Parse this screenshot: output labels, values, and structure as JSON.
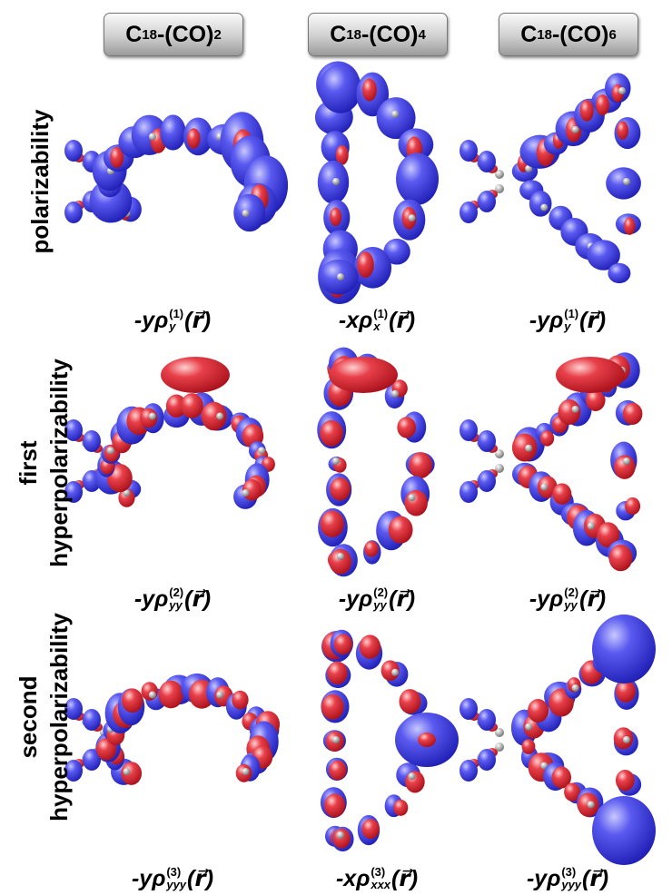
{
  "columns": [
    {
      "formula_base": "C",
      "formula_sub1": "18",
      "formula_mid": "-(CO)",
      "formula_sub2": "2"
    },
    {
      "formula_base": "C",
      "formula_sub1": "18",
      "formula_mid": "-(CO)",
      "formula_sub2": "4"
    },
    {
      "formula_base": "C",
      "formula_sub1": "18",
      "formula_mid": "-(CO)",
      "formula_sub2": "6"
    }
  ],
  "rows": [
    {
      "label_lines": [
        "polarizability"
      ],
      "panels": [
        {
          "sign_var": "-y",
          "symbol": "ρ",
          "superscript": "(1)",
          "subscript": "y",
          "argument": "(r⃗)"
        },
        {
          "sign_var": "-x",
          "symbol": "ρ",
          "superscript": "(1)",
          "subscript": "x",
          "argument": "(r⃗)"
        },
        {
          "sign_var": "-y",
          "symbol": "ρ",
          "superscript": "(1)",
          "subscript": "y",
          "argument": "(r⃗)"
        }
      ]
    },
    {
      "label_lines": [
        "first",
        "hyperpolarizability"
      ],
      "panels": [
        {
          "sign_var": "-y",
          "symbol": "ρ",
          "superscript": "(2)",
          "subscript": "yy",
          "argument": "(r⃗)"
        },
        {
          "sign_var": "-y",
          "symbol": "ρ",
          "superscript": "(2)",
          "subscript": "yy",
          "argument": "(r⃗)"
        },
        {
          "sign_var": "-y",
          "symbol": "ρ",
          "superscript": "(2)",
          "subscript": "yy",
          "argument": "(r⃗)"
        }
      ]
    },
    {
      "label_lines": [
        "second",
        "hyperpolarizability"
      ],
      "panels": [
        {
          "sign_var": "-y",
          "symbol": "ρ",
          "superscript": "(3)",
          "subscript": "yyy",
          "argument": "(r⃗)"
        },
        {
          "sign_var": "-x",
          "symbol": "ρ",
          "superscript": "(3)",
          "subscript": "xxx",
          "argument": "(r⃗)"
        },
        {
          "sign_var": "-y",
          "symbol": "ρ",
          "superscript": "(3)",
          "subscript": "yyy",
          "argument": "(r⃗)"
        }
      ]
    }
  ]
}
